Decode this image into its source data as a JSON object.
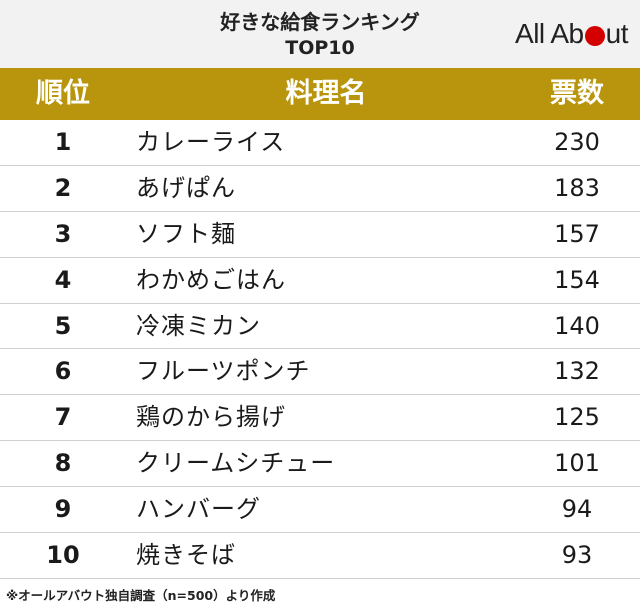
{
  "title_line1": "好きな給食ランキング",
  "title_line2": "TOP10",
  "logo": {
    "part1": "All Ab",
    "part2": "ut"
  },
  "columns": {
    "rank": "順位",
    "dish": "料理名",
    "votes": "票数"
  },
  "rows": [
    {
      "rank": "1",
      "dish": "カレーライス",
      "votes": "230"
    },
    {
      "rank": "2",
      "dish": "あげぱん",
      "votes": "183"
    },
    {
      "rank": "3",
      "dish": "ソフト麺",
      "votes": "157"
    },
    {
      "rank": "4",
      "dish": "わかめごはん",
      "votes": "154"
    },
    {
      "rank": "5",
      "dish": "冷凍ミカン",
      "votes": "140"
    },
    {
      "rank": "6",
      "dish": "フルーツポンチ",
      "votes": "132"
    },
    {
      "rank": "7",
      "dish": "鶏のから揚げ",
      "votes": "125"
    },
    {
      "rank": "8",
      "dish": "クリームシチュー",
      "votes": "101"
    },
    {
      "rank": "9",
      "dish": "ハンバーグ",
      "votes": "94"
    },
    {
      "rank": "10",
      "dish": "焼きそば",
      "votes": "93"
    }
  ],
  "footnote": "※オールアバウト独自調査（n=500）より作成",
  "colors": {
    "header_bar": "#b8950c",
    "logo_dot": "#d40000",
    "title_bg": "#f2f2f2"
  }
}
